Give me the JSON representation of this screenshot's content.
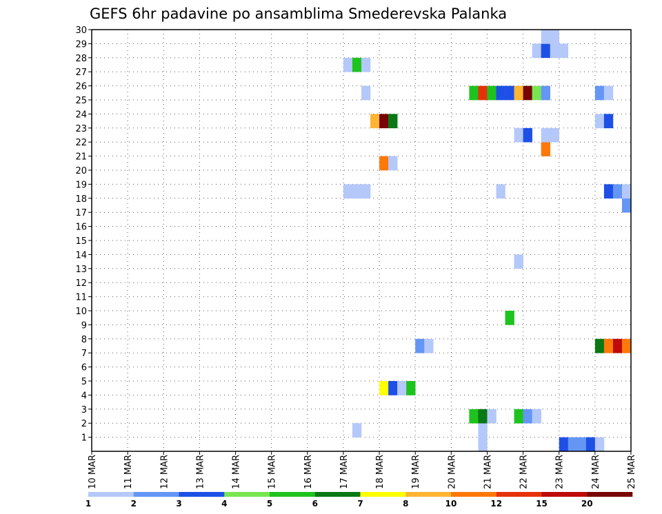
{
  "chart_data": {
    "type": "heatmap",
    "title": "GEFS 6hr padavine po ansamblima Smederevska Palanka",
    "x_tick_labels": [
      "10 MAR",
      "11 MAR",
      "12 MAR",
      "13 MAR",
      "14 MAR",
      "15 MAR",
      "16 MAR",
      "17 MAR",
      "18 MAR",
      "19 MAR",
      "20 MAR",
      "21 MAR",
      "22 MAR",
      "23 MAR",
      "24 MAR",
      "25 MAR"
    ],
    "x_range_days": [
      0,
      15
    ],
    "step_hours": 6,
    "y_tick_labels": [
      "1",
      "2",
      "3",
      "4",
      "5",
      "6",
      "7",
      "8",
      "9",
      "10",
      "11",
      "12",
      "13",
      "14",
      "15",
      "16",
      "17",
      "18",
      "19",
      "20",
      "21",
      "22",
      "23",
      "24",
      "25",
      "26",
      "27",
      "28",
      "29",
      "30"
    ],
    "y_range": [
      0,
      30
    ],
    "colorbar": {
      "labels": [
        "1",
        "2",
        "3",
        "4",
        "5",
        "6",
        "7",
        "8",
        "10",
        "12",
        "15",
        "20"
      ],
      "colors": [
        "#b4c8fa",
        "#6496f5",
        "#1e50e6",
        "#78e650",
        "#1ec31e",
        "#0a7814",
        "#ffff00",
        "#ffb432",
        "#ff780a",
        "#e6320a",
        "#be0a0a",
        "#780505"
      ]
    },
    "cells": [
      {
        "member": 0,
        "step": 43,
        "level": 1
      },
      {
        "member": 0,
        "step": 52,
        "level": 3
      },
      {
        "member": 0,
        "step": 53,
        "level": 2
      },
      {
        "member": 0,
        "step": 54,
        "level": 2
      },
      {
        "member": 0,
        "step": 55,
        "level": 3
      },
      {
        "member": 0,
        "step": 56,
        "level": 1
      },
      {
        "member": 1,
        "step": 29,
        "level": 1
      },
      {
        "member": 1,
        "step": 43,
        "level": 1
      },
      {
        "member": 2,
        "step": 42,
        "level": 5
      },
      {
        "member": 2,
        "step": 43,
        "level": 6
      },
      {
        "member": 2,
        "step": 44,
        "level": 1
      },
      {
        "member": 2,
        "step": 47,
        "level": 5
      },
      {
        "member": 2,
        "step": 48,
        "level": 2
      },
      {
        "member": 2,
        "step": 49,
        "level": 1
      },
      {
        "member": 4,
        "step": 32,
        "level": 7
      },
      {
        "member": 4,
        "step": 33,
        "level": 3
      },
      {
        "member": 4,
        "step": 34,
        "level": 1
      },
      {
        "member": 4,
        "step": 35,
        "level": 5
      },
      {
        "member": 7,
        "step": 36,
        "level": 2
      },
      {
        "member": 7,
        "step": 37,
        "level": 1
      },
      {
        "member": 7,
        "step": 56,
        "level": 6
      },
      {
        "member": 7,
        "step": 57,
        "level": 9
      },
      {
        "member": 7,
        "step": 58,
        "level": 11
      },
      {
        "member": 7,
        "step": 59,
        "level": 9
      },
      {
        "member": 9,
        "step": 46,
        "level": 5
      },
      {
        "member": 13,
        "step": 47,
        "level": 1
      },
      {
        "member": 17,
        "step": 59,
        "level": 2
      },
      {
        "member": 18,
        "step": 28,
        "level": 1
      },
      {
        "member": 18,
        "step": 29,
        "level": 1
      },
      {
        "member": 18,
        "step": 30,
        "level": 1
      },
      {
        "member": 18,
        "step": 45,
        "level": 1
      },
      {
        "member": 18,
        "step": 57,
        "level": 3
      },
      {
        "member": 18,
        "step": 58,
        "level": 2
      },
      {
        "member": 18,
        "step": 59,
        "level": 1
      },
      {
        "member": 20,
        "step": 32,
        "level": 9
      },
      {
        "member": 20,
        "step": 33,
        "level": 1
      },
      {
        "member": 21,
        "step": 50,
        "level": 9
      },
      {
        "member": 22,
        "step": 47,
        "level": 1
      },
      {
        "member": 22,
        "step": 48,
        "level": 3
      },
      {
        "member": 22,
        "step": 50,
        "level": 1
      },
      {
        "member": 22,
        "step": 51,
        "level": 1
      },
      {
        "member": 23,
        "step": 31,
        "level": 8
      },
      {
        "member": 23,
        "step": 32,
        "level": 12
      },
      {
        "member": 23,
        "step": 33,
        "level": 6
      },
      {
        "member": 23,
        "step": 56,
        "level": 1
      },
      {
        "member": 23,
        "step": 57,
        "level": 3
      },
      {
        "member": 25,
        "step": 30,
        "level": 1
      },
      {
        "member": 25,
        "step": 42,
        "level": 5
      },
      {
        "member": 25,
        "step": 43,
        "level": 10
      },
      {
        "member": 25,
        "step": 44,
        "level": 5
      },
      {
        "member": 25,
        "step": 45,
        "level": 3
      },
      {
        "member": 25,
        "step": 46,
        "level": 3
      },
      {
        "member": 25,
        "step": 47,
        "level": 8
      },
      {
        "member": 25,
        "step": 48,
        "level": 12
      },
      {
        "member": 25,
        "step": 49,
        "level": 4
      },
      {
        "member": 25,
        "step": 50,
        "level": 2
      },
      {
        "member": 25,
        "step": 56,
        "level": 2
      },
      {
        "member": 25,
        "step": 57,
        "level": 1
      },
      {
        "member": 27,
        "step": 28,
        "level": 1
      },
      {
        "member": 27,
        "step": 29,
        "level": 5
      },
      {
        "member": 27,
        "step": 30,
        "level": 1
      },
      {
        "member": 28,
        "step": 49,
        "level": 1
      },
      {
        "member": 28,
        "step": 50,
        "level": 3
      },
      {
        "member": 28,
        "step": 51,
        "level": 1
      },
      {
        "member": 28,
        "step": 52,
        "level": 1
      },
      {
        "member": 29,
        "step": 50,
        "level": 1
      },
      {
        "member": 29,
        "step": 51,
        "level": 1
      }
    ]
  }
}
